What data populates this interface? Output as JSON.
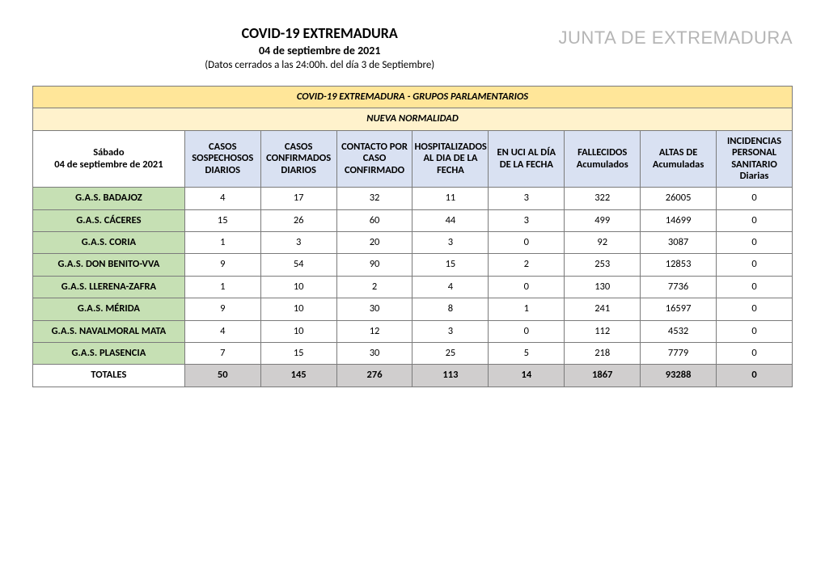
{
  "header": {
    "title": "COVID-19 EXTREMADURA",
    "date": "04 de septiembre de 2021",
    "note": "(Datos cerrados a las 24:00h. del día 3 de Septiembre)",
    "logo": "JUNTA DE EXTREMADURA"
  },
  "table": {
    "banner1": "COVID-19 EXTREMADURA - GRUPOS PARLAMENTARIOS",
    "banner2": "NUEVA NORMALIDAD",
    "banner1_bg": "#ffe699",
    "banner2_bg": "#fff2cc",
    "header_bg": "#d9e1f2",
    "label_bg": "#c6e0b4",
    "totals_bg": "#d0cece",
    "date_header_line1": "Sábado",
    "date_header_line2": "04 de septiembre de 2021",
    "columns": [
      "CASOS SOSPECHOSOS DIARIOS",
      "CASOS CONFIRMADOS DIARIOS",
      "CONTACTO POR CASO CONFIRMADO",
      "HOSPITALIZADOS AL DIA DE LA FECHA",
      "EN UCI AL DÍA DE LA FECHA",
      "FALLECIDOS Acumulados",
      "ALTAS DE Acumuladas",
      "INCIDENCIAS PERSONAL SANITARIO Diarias"
    ],
    "rows": [
      {
        "label": "G.A.S. BADAJOZ",
        "v": [
          "4",
          "17",
          "32",
          "11",
          "3",
          "322",
          "26005",
          "0"
        ]
      },
      {
        "label": "G.A.S. CÁCERES",
        "v": [
          "15",
          "26",
          "60",
          "44",
          "3",
          "499",
          "14699",
          "0"
        ]
      },
      {
        "label": "G.A.S. CORIA",
        "v": [
          "1",
          "3",
          "20",
          "3",
          "0",
          "92",
          "3087",
          "0"
        ]
      },
      {
        "label": "G.A.S. DON BENITO-VVA",
        "v": [
          "9",
          "54",
          "90",
          "15",
          "2",
          "253",
          "12853",
          "0"
        ]
      },
      {
        "label": "G.A.S. LLERENA-ZAFRA",
        "v": [
          "1",
          "10",
          "2",
          "4",
          "0",
          "130",
          "7736",
          "0"
        ]
      },
      {
        "label": "G.A.S. MÉRIDA",
        "v": [
          "9",
          "10",
          "30",
          "8",
          "1",
          "241",
          "16597",
          "0"
        ]
      },
      {
        "label": "G.A.S. NAVALMORAL MATA",
        "v": [
          "4",
          "10",
          "12",
          "3",
          "0",
          "112",
          "4532",
          "0"
        ]
      },
      {
        "label": "G.A.S. PLASENCIA",
        "v": [
          "7",
          "15",
          "30",
          "25",
          "5",
          "218",
          "7779",
          "0"
        ]
      }
    ],
    "totals": {
      "label": "TOTALES",
      "v": [
        "50",
        "145",
        "276",
        "113",
        "14",
        "1867",
        "93288",
        "0"
      ]
    }
  }
}
